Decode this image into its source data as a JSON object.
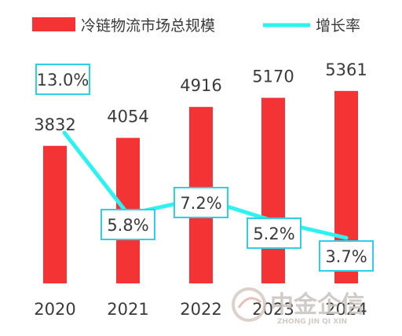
{
  "chart_data": {
    "type": "bar",
    "categories": [
      "2020",
      "2021",
      "2022",
      "2023",
      "2024"
    ],
    "series": [
      {
        "name": "冷链物流市场总规模",
        "type": "bar",
        "values": [
          3832,
          4054,
          4916,
          5170,
          5361
        ],
        "labels": [
          "3832",
          "4054",
          "4916",
          "5170",
          "5361"
        ],
        "color": "#f43434"
      },
      {
        "name": "增长率",
        "type": "line",
        "values": [
          13.0,
          5.8,
          7.2,
          5.2,
          3.7
        ],
        "labels": [
          "13.0%",
          "5.8%",
          "7.2%",
          "5.2%",
          "3.7%"
        ],
        "color": "#2ef2f0"
      }
    ],
    "legend": "top"
  },
  "watermark": {
    "name": "中金企信",
    "pinyin": "ZHONG JIN QI XIN"
  }
}
